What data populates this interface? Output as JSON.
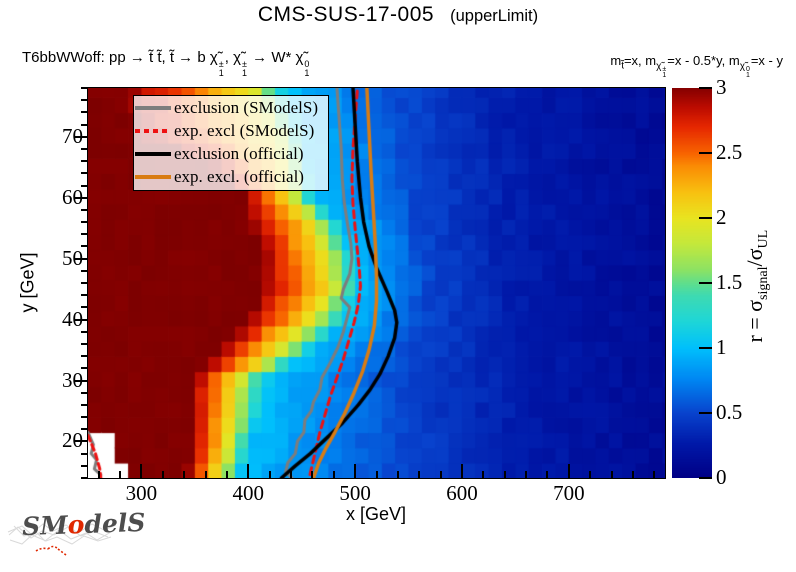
{
  "header": {
    "title": "CMS-SUS-17-005",
    "subtitle": "(upperLimit)"
  },
  "labels": {
    "process": {
      "p1": "T6bbWWoff: pp  → ",
      "p2": "t̃ t̃, t̃  → b ",
      "chi": "χ̃",
      "pm": "±",
      "one": "1",
      "comma": ", ",
      "p3": " → W* ",
      "zero": "0"
    },
    "masses": {
      "m": "m",
      "t_sub": "t̃",
      "eqA": "=x, ",
      "chi": "χ̃",
      "pm": "±",
      "one": "1",
      "eqB": "=x - 0.5*y, ",
      "zero": "0",
      "eqC": "=x - y"
    },
    "colorbar_title": {
      "pre": "r = ",
      "sigma": "σ",
      "sub_signal": "signal",
      "slash": "/",
      "sub_ul": "UL"
    }
  },
  "logo": {
    "left": "SM",
    "o": "o",
    "right": "delS"
  },
  "chart_data": {
    "type": "heatmap",
    "title": "CMS-SUS-17-005 (upperLimit)",
    "xlabel": "x [GeV]",
    "ylabel": "y [GeV]",
    "zlabel": "r = σ_signal/σ_UL",
    "xlim": [
      250,
      790
    ],
    "ylim": [
      14,
      78
    ],
    "zlim": [
      0,
      3
    ],
    "x_ticks": [
      300,
      400,
      500,
      600,
      700
    ],
    "x_minor_step": 20,
    "y_ticks": [
      20,
      30,
      40,
      50,
      60,
      70
    ],
    "y_minor_step": 2,
    "z_ticks": [
      0,
      0.5,
      1,
      1.5,
      2,
      2.5,
      3
    ],
    "x_bin_width": 12.5,
    "y_bin_width": 2.5,
    "grid": false,
    "legend_position": "top-left",
    "palette": [
      [
        0.0,
        [
          0,
          0,
          134
        ]
      ],
      [
        0.085,
        [
          0,
          24,
          168
        ]
      ],
      [
        0.167,
        [
          8,
          68,
          206
        ]
      ],
      [
        0.25,
        [
          0,
          133,
          242
        ]
      ],
      [
        0.333,
        [
          0,
          192,
          252
        ]
      ],
      [
        0.4,
        [
          30,
          214,
          216
        ]
      ],
      [
        0.467,
        [
          62,
          218,
          178
        ]
      ],
      [
        0.5,
        [
          96,
          222,
          140
        ]
      ],
      [
        0.533,
        [
          140,
          226,
          100
        ]
      ],
      [
        0.6,
        [
          196,
          232,
          60
        ]
      ],
      [
        0.667,
        [
          233,
          228,
          32
        ]
      ],
      [
        0.733,
        [
          248,
          193,
          16
        ]
      ],
      [
        0.8,
        [
          250,
          140,
          4
        ]
      ],
      [
        0.833,
        [
          248,
          100,
          0
        ]
      ],
      [
        0.9,
        [
          230,
          40,
          0
        ]
      ],
      [
        0.95,
        [
          190,
          12,
          0
        ]
      ],
      [
        1.0,
        [
          134,
          0,
          0
        ]
      ]
    ],
    "field": {
      "y": [
        14,
        20,
        30,
        35,
        40,
        45,
        50,
        55,
        60,
        65,
        70,
        78
      ],
      "x_r3": [
        340,
        347,
        347,
        370,
        400,
        412,
        412,
        405,
        395,
        370,
        300,
        285
      ],
      "x_r2": [
        372,
        380,
        388,
        428,
        455,
        477,
        472,
        462,
        440,
        432,
        425,
        400
      ],
      "x_r1": [
        392,
        405,
        418,
        458,
        492,
        505,
        500,
        490,
        462,
        458,
        455,
        435
      ],
      "x_r05": [
        535,
        540,
        548,
        556,
        565,
        570,
        568,
        562,
        558,
        555,
        552,
        545
      ],
      "far": [
        [
          650,
          0.28
        ],
        [
          790,
          0.12
        ]
      ]
    },
    "no_data": [
      {
        "x_max": 262.6,
        "y_max": 21.8
      },
      {
        "x_max": 275.1,
        "y_max": 16.8
      }
    ],
    "legend": [
      {
        "label": "exclusion (SModelS)",
        "color": "#7d7d7d",
        "style": "solid"
      },
      {
        "label": "exp. excl (SModelS)",
        "color": "#ee1111",
        "style": "dashed"
      },
      {
        "label": "exclusion (official)",
        "color": "#000000",
        "style": "solid"
      },
      {
        "label": "exp. excl. (official)",
        "color": "#d97c12",
        "style": "solid"
      }
    ],
    "curves": [
      {
        "name": "exclusion-smodels",
        "color": "#7d7d7d",
        "width": 3,
        "dash": [],
        "points": [
          [
            483,
            78
          ],
          [
            485,
            73
          ],
          [
            487,
            68
          ],
          [
            488,
            63
          ],
          [
            490,
            59
          ],
          [
            493,
            55.5
          ],
          [
            496,
            52.5
          ],
          [
            497,
            50
          ],
          [
            495,
            47.5
          ],
          [
            489,
            45
          ],
          [
            487,
            43.5
          ],
          [
            495,
            42
          ],
          [
            492,
            40
          ],
          [
            489,
            38
          ],
          [
            484,
            35.5
          ],
          [
            477,
            33
          ],
          [
            469,
            30.5
          ],
          [
            467,
            28.5
          ],
          [
            461,
            26.5
          ],
          [
            459,
            25
          ],
          [
            453,
            23.5
          ],
          [
            452,
            21.5
          ],
          [
            446,
            20
          ],
          [
            444,
            18
          ],
          [
            437,
            16.5
          ],
          [
            435,
            15
          ],
          [
            441,
            14
          ]
        ]
      },
      {
        "name": "exp-excl-smodels",
        "color": "#ee1111",
        "width": 3,
        "dash": [
          7,
          5
        ],
        "points": [
          [
            502,
            77.5
          ],
          [
            500,
            73
          ],
          [
            498,
            68
          ],
          [
            497,
            63
          ],
          [
            498,
            59
          ],
          [
            500,
            55
          ],
          [
            502,
            51.5
          ],
          [
            504,
            48
          ],
          [
            505,
            45.5
          ],
          [
            503,
            42.5
          ],
          [
            499,
            39.5
          ],
          [
            494,
            36.5
          ],
          [
            489,
            33.5
          ],
          [
            483,
            30.5
          ],
          [
            477,
            27.5
          ],
          [
            472,
            24.5
          ],
          [
            467,
            21.5
          ],
          [
            463,
            18.5
          ],
          [
            459,
            15.5
          ],
          [
            457,
            14
          ]
        ]
      },
      {
        "name": "exclusion-official",
        "color": "#000000",
        "width": 3.5,
        "dash": [],
        "points": [
          [
            498,
            78
          ],
          [
            500,
            72
          ],
          [
            502,
            66
          ],
          [
            505,
            60
          ],
          [
            508,
            56
          ],
          [
            513,
            52
          ],
          [
            520,
            48.5
          ],
          [
            530,
            44.5
          ],
          [
            537,
            41.5
          ],
          [
            539,
            39.5
          ],
          [
            537,
            37
          ],
          [
            531,
            34
          ],
          [
            523,
            31
          ],
          [
            514,
            28.5
          ],
          [
            503,
            26
          ],
          [
            488,
            23
          ],
          [
            473,
            20.5
          ],
          [
            458,
            18
          ],
          [
            444,
            16
          ],
          [
            431,
            14
          ]
        ]
      },
      {
        "name": "exp-excl-official",
        "color": "#d97c12",
        "width": 3.5,
        "dash": [],
        "points": [
          [
            511,
            78
          ],
          [
            513,
            71
          ],
          [
            515,
            64
          ],
          [
            517,
            58
          ],
          [
            519,
            52
          ],
          [
            520,
            47
          ],
          [
            520,
            43
          ],
          [
            518,
            39
          ],
          [
            513,
            35
          ],
          [
            507,
            31.5
          ],
          [
            499,
            28
          ],
          [
            490,
            24.5
          ],
          [
            481,
            21.5
          ],
          [
            473,
            19
          ],
          [
            466,
            16.5
          ],
          [
            461,
            14
          ]
        ]
      },
      {
        "name": "exclusion-smodels-corner",
        "color": "#7d7d7d",
        "width": 3,
        "dash": [],
        "points": [
          [
            250,
            21.5
          ],
          [
            255,
            19.5
          ],
          [
            253,
            18
          ],
          [
            258,
            17
          ],
          [
            256,
            15.5
          ],
          [
            262,
            14.5
          ],
          [
            261,
            14
          ]
        ]
      },
      {
        "name": "exp-excl-smodels-corner",
        "color": "#ee1111",
        "width": 3,
        "dash": [
          6,
          4
        ],
        "points": [
          [
            250,
            21
          ],
          [
            257,
            18
          ],
          [
            261,
            15.5
          ],
          [
            262,
            14
          ]
        ]
      }
    ]
  }
}
